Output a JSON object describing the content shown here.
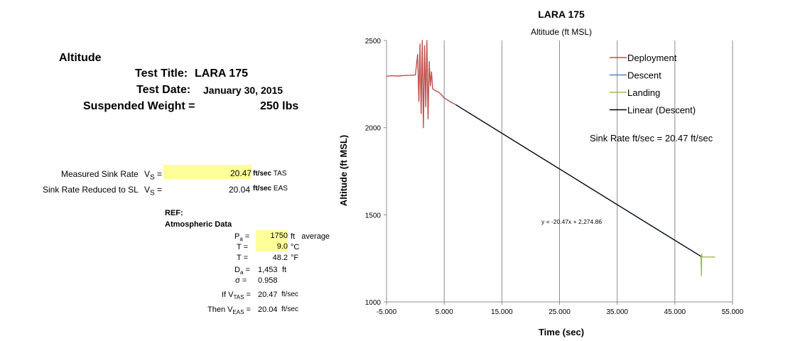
{
  "left": {
    "heading": "Altitude",
    "test_title_label": "Test Title:",
    "test_title_value": "LARA 175",
    "test_date_label": "Test Date:",
    "test_date_value": "January 30, 2015",
    "weight_label": "Suspended Weight =",
    "weight_value": "250",
    "weight_unit": "lbs",
    "measured_label": "Measured Sink Rate",
    "measured_sym": "V",
    "measured_sub": "S",
    "measured_eq": " =",
    "measured_value": "20.47",
    "measured_unit": "ft/sec",
    "measured_note": "TAS",
    "reduced_label": "Sink Rate Reduced to SL",
    "reduced_sym": "V",
    "reduced_sub": "S",
    "reduced_eq": " =",
    "reduced_value": "20.04",
    "reduced_unit": "ft/sec",
    "reduced_note": "EAS",
    "ref_label": "REF:",
    "atm_label": "Atmospheric Data",
    "pa_sym": "P",
    "pa_sub": "a",
    "pa_eq": " =",
    "pa_value": "1750",
    "pa_unit": "ft",
    "pa_note": "average",
    "t1_label": "T =",
    "t1_value": "9.0",
    "t1_unit": "°C",
    "t2_label": "T =",
    "t2_value": "48.2",
    "t2_unit": "°F",
    "da_sym": "D",
    "da_sub": "a",
    "da_eq": " =",
    "da_value": "1,453",
    "da_unit": "ft",
    "sigma_label": "σ  =",
    "sigma_value": "0.958",
    "vtas_pre": "If V",
    "vtas_sub": "TAS",
    "vtas_eq": " =",
    "vtas_value": "20.47",
    "vtas_unit": "ft/sec",
    "veas_pre": "Then V",
    "veas_sub": "EAS",
    "veas_eq": " =",
    "veas_value": "20.04",
    "veas_unit": "ft/sec"
  },
  "chart_data": {
    "type": "line",
    "title": "LARA 175",
    "subtitle": "Altitude (ft MSL)",
    "xlabel": "Time (sec)",
    "ylabel": "Altitude (ft MSL)",
    "xlim": [
      -5,
      55
    ],
    "ylim": [
      1000,
      2500
    ],
    "x_ticks": [
      -5,
      5,
      15,
      25,
      35,
      45,
      55
    ],
    "x_tick_labels": [
      "-5.000",
      "5.000",
      "15.000",
      "25.000",
      "35.000",
      "45.000",
      "55.000"
    ],
    "y_ticks": [
      1000,
      1500,
      2000,
      2500
    ],
    "y_tick_labels": [
      "1000",
      "1500",
      "2000",
      "2500"
    ],
    "grid": "vertical",
    "legend_position": "top-right",
    "annotations": [
      "Sink Rate  ft/sec = 20.47 ft/sec",
      "y = -20.47x + 2,274.86"
    ],
    "series": [
      {
        "name": "Deployment",
        "color": "#c0504d",
        "x": [
          -5,
          -4,
          -3,
          -2,
          -1,
          0,
          0.4,
          0.6,
          0.8,
          1.0,
          1.2,
          1.4,
          1.6,
          1.8,
          2.0,
          2.2,
          2.4,
          2.6,
          2.8,
          3.0,
          3.3,
          3.6,
          4.0,
          4.5,
          5.0,
          5.5,
          6.0,
          6.5,
          7.0
        ],
        "y": [
          2295,
          2298,
          2296,
          2299,
          2300,
          2302,
          2420,
          2150,
          2480,
          2080,
          2500,
          2000,
          2470,
          2120,
          2500,
          2050,
          2380,
          2240,
          2320,
          2225,
          2215,
          2210,
          2205,
          2190,
          2170,
          2160,
          2150,
          2140,
          2132
        ]
      },
      {
        "name": "Descent",
        "color": "#4f81bd",
        "x": [
          7,
          10,
          15,
          20,
          25,
          30,
          35,
          40,
          45,
          49.5
        ],
        "y": [
          2132,
          2070,
          1968,
          1865,
          1763,
          1660,
          1558,
          1455,
          1353,
          1262
        ]
      },
      {
        "name": "Landing",
        "color": "#9bbb59",
        "x": [
          49.5,
          49.6,
          49.65,
          49.7,
          50.0,
          51,
          52
        ],
        "y": [
          1262,
          1150,
          1275,
          1260,
          1258,
          1258,
          1258
        ]
      },
      {
        "name": "Linear (Descent)",
        "color": "#000000",
        "x": [
          7,
          49.5
        ],
        "y": [
          2131.6,
          1261.6
        ]
      }
    ]
  }
}
